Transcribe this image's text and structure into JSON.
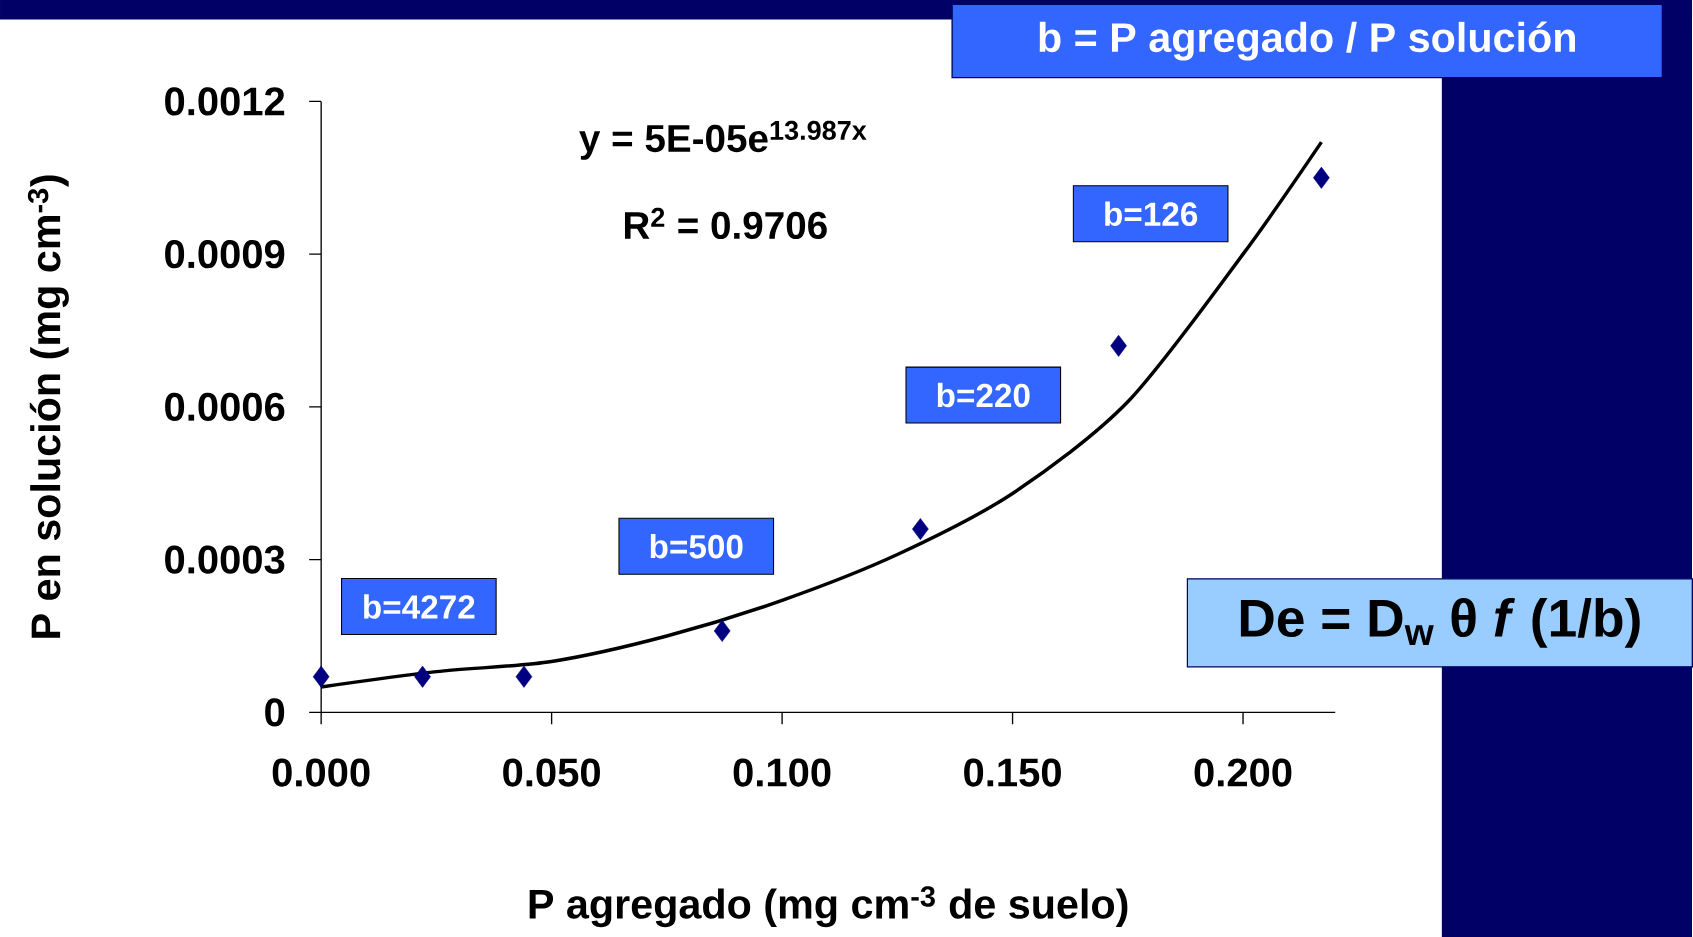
{
  "chart_data": {
    "type": "scatter",
    "xlabel": "P agregado (mg cm$^{-3}$ de suelo)",
    "ylabel": "P en solución (mg cm$^{-3}$)",
    "xlim": [
      0,
      0.22
    ],
    "ylim": [
      0,
      0.0012
    ],
    "xticks": [
      {
        "value": 0,
        "label": "0.000"
      },
      {
        "value": 0.05,
        "label": "0.050"
      },
      {
        "value": 0.1,
        "label": "0.100"
      },
      {
        "value": 0.15,
        "label": "0.150"
      },
      {
        "value": 0.2,
        "label": "0.200"
      }
    ],
    "yticks": [
      0,
      0.0003,
      0.0006,
      0.0009,
      0.0012
    ],
    "series": [
      {
        "type": "scatter",
        "color": "#000080",
        "marker": "diamond",
        "x": [
          0.0,
          0.022,
          0.044,
          0.087,
          0.13,
          0.173,
          0.217
        ],
        "values": [
          7e-05,
          7e-05,
          7e-05,
          0.00016,
          0.00036,
          0.00072,
          0.00105
        ]
      },
      {
        "type": "line",
        "color": "#000000",
        "marker": "none",
        "line_style": "solid",
        "x": [
          0,
          0.025,
          0.05,
          0.075,
          0.1,
          0.125,
          0.15,
          0.175,
          0.2,
          0.217
        ],
        "values": [
          5e-05,
          8e-05,
          0.0001,
          0.00015,
          0.00022,
          0.00031,
          0.00043,
          0.00061,
          0.0009,
          0.00112
        ]
      }
    ],
    "annotations": [
      "y = 5E-05e$^{13.987x}$",
      "R$^{2}$ = 0.9706",
      "b=4272",
      "b=500",
      "b=220",
      "b=126",
      "b = P agregado / P solución",
      "De = D$_{w}$ θ *f* (1/b)"
    ],
    "grid": false
  }
}
